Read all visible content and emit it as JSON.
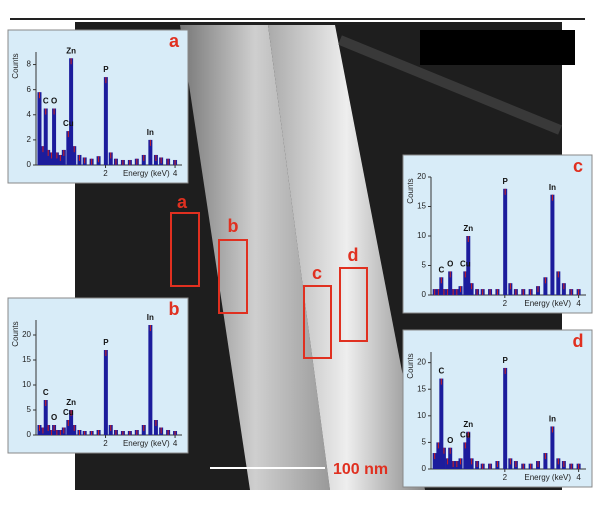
{
  "figure": {
    "scale_bar": "100 nm",
    "region_labels": [
      "a",
      "b",
      "c",
      "d"
    ]
  },
  "chart_data": [
    {
      "type": "bar",
      "title": "a",
      "y_label": "Counts",
      "x_label": "Energy (keV)",
      "color": "#1c1c9c",
      "x": [
        0.1,
        0.2,
        0.28,
        0.35,
        0.45,
        0.52,
        0.6,
        0.7,
        0.8,
        0.93,
        1.01,
        1.1,
        1.25,
        1.4,
        1.6,
        1.8,
        2.01,
        2.15,
        2.3,
        2.5,
        2.7,
        2.9,
        3.1,
        3.29,
        3.45,
        3.6,
        3.8,
        4.0
      ],
      "values": [
        5.8,
        1.5,
        4.5,
        1.2,
        1.0,
        4.5,
        1.0,
        0.8,
        1.2,
        2.7,
        8.5,
        1.5,
        0.8,
        0.6,
        0.5,
        0.7,
        7.0,
        1.0,
        0.5,
        0.4,
        0.4,
        0.5,
        0.8,
        2.0,
        0.8,
        0.6,
        0.5,
        0.4
      ],
      "xlim": [
        0,
        4.2
      ],
      "xticks": [
        2,
        4
      ],
      "ylim": [
        0,
        9
      ],
      "yticks": [
        0,
        2,
        4,
        6,
        8
      ],
      "peaks": [
        {
          "label": "C",
          "x": 0.28
        },
        {
          "label": "O",
          "x": 0.52
        },
        {
          "label": "Cu",
          "x": 0.93
        },
        {
          "label": "Zn",
          "x": 1.01
        },
        {
          "label": "P",
          "x": 2.01
        },
        {
          "label": "In",
          "x": 3.29
        }
      ]
    },
    {
      "type": "bar",
      "title": "b",
      "y_label": "Counts",
      "x_label": "Energy (keV)",
      "color": "#1c1c9c",
      "x": [
        0.1,
        0.2,
        0.28,
        0.35,
        0.45,
        0.52,
        0.6,
        0.7,
        0.8,
        0.93,
        1.01,
        1.1,
        1.25,
        1.4,
        1.6,
        1.8,
        2.01,
        2.15,
        2.3,
        2.5,
        2.7,
        2.9,
        3.1,
        3.29,
        3.45,
        3.6,
        3.8,
        4.0
      ],
      "values": [
        2,
        1.5,
        7,
        2,
        1,
        2,
        1,
        1,
        1.5,
        3,
        5,
        2,
        1,
        0.8,
        0.8,
        1,
        17,
        2,
        1,
        0.8,
        0.8,
        1,
        2,
        22,
        3,
        1.5,
        1,
        0.8
      ],
      "xlim": [
        0,
        4.2
      ],
      "xticks": [
        2,
        4
      ],
      "ylim": [
        0,
        23
      ],
      "yticks": [
        0,
        5,
        10,
        15,
        20
      ],
      "peaks": [
        {
          "label": "C",
          "x": 0.28
        },
        {
          "label": "O",
          "x": 0.52
        },
        {
          "label": "Cu",
          "x": 0.93
        },
        {
          "label": "Zn",
          "x": 1.01
        },
        {
          "label": "P",
          "x": 2.01
        },
        {
          "label": "In",
          "x": 3.29
        }
      ]
    },
    {
      "type": "bar",
      "title": "c",
      "y_label": "Counts",
      "x_label": "Energy (keV)",
      "color": "#1c1c9c",
      "x": [
        0.1,
        0.2,
        0.28,
        0.35,
        0.45,
        0.52,
        0.6,
        0.7,
        0.8,
        0.93,
        1.01,
        1.1,
        1.25,
        1.4,
        1.6,
        1.8,
        2.01,
        2.15,
        2.3,
        2.5,
        2.7,
        2.9,
        3.1,
        3.29,
        3.45,
        3.6,
        3.8,
        4.0
      ],
      "values": [
        1,
        1,
        3,
        1,
        1,
        4,
        1,
        1,
        1.5,
        4,
        10,
        2,
        1,
        1,
        1,
        1,
        18,
        2,
        1,
        1,
        1,
        1.5,
        3,
        17,
        4,
        2,
        1,
        1
      ],
      "xlim": [
        0,
        4.2
      ],
      "xticks": [
        2,
        4
      ],
      "ylim": [
        0,
        20
      ],
      "yticks": [
        0,
        5,
        10,
        15,
        20
      ],
      "peaks": [
        {
          "label": "C",
          "x": 0.28
        },
        {
          "label": "O",
          "x": 0.52
        },
        {
          "label": "Cu",
          "x": 0.93
        },
        {
          "label": "Zn",
          "x": 1.01
        },
        {
          "label": "P",
          "x": 2.01
        },
        {
          "label": "In",
          "x": 3.29
        }
      ]
    },
    {
      "type": "bar",
      "title": "d",
      "y_label": "Counts",
      "x_label": "Energy (keV)",
      "color": "#1c1c9c",
      "x": [
        0.1,
        0.2,
        0.28,
        0.35,
        0.45,
        0.52,
        0.6,
        0.7,
        0.8,
        0.93,
        1.01,
        1.1,
        1.25,
        1.4,
        1.6,
        1.8,
        2.01,
        2.15,
        2.3,
        2.5,
        2.7,
        2.9,
        3.1,
        3.29,
        3.45,
        3.6,
        3.8,
        4.0
      ],
      "values": [
        3,
        5,
        17,
        4,
        2,
        4,
        1.5,
        1.5,
        2,
        5,
        7,
        2,
        1.5,
        1,
        1,
        1.5,
        19,
        2,
        1.5,
        1,
        1,
        1.5,
        3,
        8,
        2,
        1.5,
        1,
        1
      ],
      "xlim": [
        0,
        4.2
      ],
      "xticks": [
        2,
        4
      ],
      "ylim": [
        0,
        22
      ],
      "yticks": [
        0,
        5,
        10,
        15,
        20
      ],
      "peaks": [
        {
          "label": "C",
          "x": 0.28
        },
        {
          "label": "O",
          "x": 0.52
        },
        {
          "label": "Cu",
          "x": 0.93
        },
        {
          "label": "Zn",
          "x": 1.01
        },
        {
          "label": "P",
          "x": 2.01
        },
        {
          "label": "In",
          "x": 3.29
        }
      ]
    }
  ]
}
